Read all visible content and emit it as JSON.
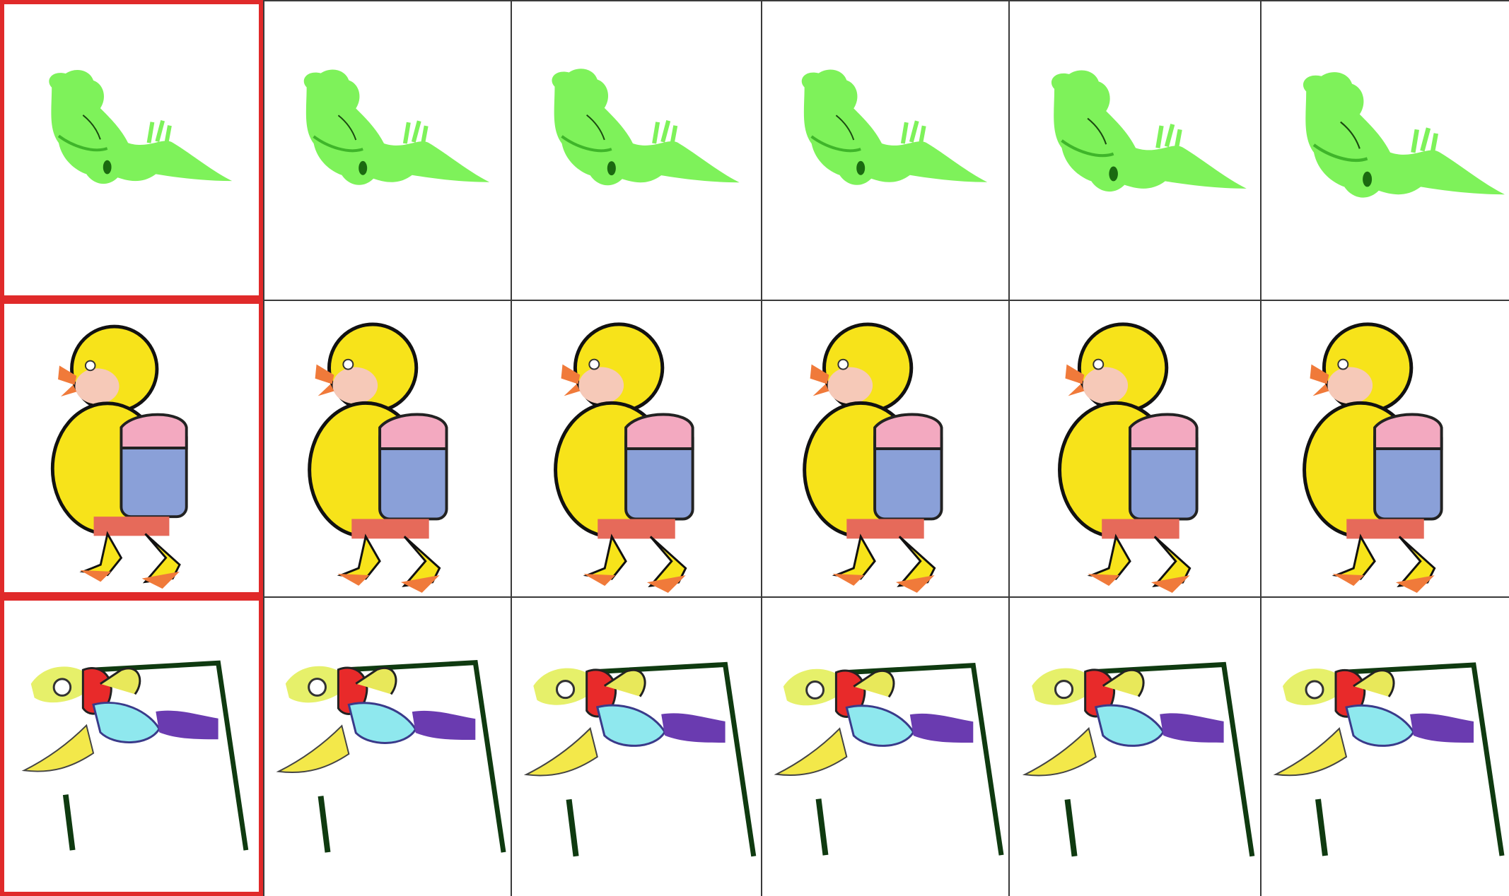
{
  "grid": {
    "rows": [
      {
        "subject": "green-lizard",
        "reference_highlight_color": "#e02a2a",
        "cells": [
          {
            "role": "reference",
            "variant": 0
          },
          {
            "role": "result",
            "variant": 1
          },
          {
            "role": "result",
            "variant": 2
          },
          {
            "role": "result",
            "variant": 3
          },
          {
            "role": "result",
            "variant": 4
          },
          {
            "role": "result",
            "variant": 5
          }
        ]
      },
      {
        "subject": "yellow-duckling-with-backpack",
        "reference_highlight_color": "#e02a2a",
        "cells": [
          {
            "role": "reference",
            "variant": 0
          },
          {
            "role": "result",
            "variant": 1
          },
          {
            "role": "result",
            "variant": 2
          },
          {
            "role": "result",
            "variant": 3
          },
          {
            "role": "result",
            "variant": 4
          },
          {
            "role": "result",
            "variant": 5
          }
        ]
      },
      {
        "subject": "parrot-on-perch",
        "reference_highlight_color": "#e02a2a",
        "cells": [
          {
            "role": "reference",
            "variant": 0
          },
          {
            "role": "result",
            "variant": 1
          },
          {
            "role": "result",
            "variant": 2
          },
          {
            "role": "result",
            "variant": 3
          },
          {
            "role": "result",
            "variant": 4
          },
          {
            "role": "result",
            "variant": 5
          }
        ]
      }
    ],
    "colors": {
      "lizard": "#7ef25a",
      "lizard_dark": "#3fb52a",
      "duck_yellow": "#f7e31a",
      "duck_cheek": "#f6c9b8",
      "backpack_blue": "#8aa0d8",
      "backpack_pink": "#f3a9c0",
      "duck_feet": "#f07a3a",
      "parrot_red": "#e82a2a",
      "parrot_cyan": "#8fe8ee",
      "parrot_purple": "#6a3bb0",
      "perch_green": "#0f3a10"
    }
  }
}
